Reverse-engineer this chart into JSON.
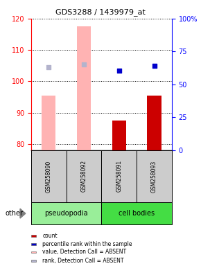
{
  "title": "GDS3288 / 1439979_at",
  "samples": [
    "GSM258090",
    "GSM258092",
    "GSM258091",
    "GSM258093"
  ],
  "groups": [
    "pseudopodia",
    "pseudopodia",
    "cell bodies",
    "cell bodies"
  ],
  "ylim_left": [
    78,
    120
  ],
  "ylim_right": [
    0,
    100
  ],
  "yticks_left": [
    80,
    90,
    100,
    110,
    120
  ],
  "yticks_right": [
    0,
    25,
    50,
    75,
    100
  ],
  "yright_labels": [
    "0",
    "25",
    "50",
    "75",
    "100%"
  ],
  "bar_values": [
    null,
    null,
    87.5,
    95.5
  ],
  "bar_absent_values": [
    95.5,
    117.5,
    null,
    null
  ],
  "dot_values": [
    null,
    null,
    103.5,
    105.0
  ],
  "dot_absent_values": [
    104.5,
    105.5,
    null,
    null
  ],
  "bar_color": "#cc0000",
  "bar_absent_color": "#ffb3b3",
  "dot_color": "#0000cc",
  "dot_absent_color": "#b3b3cc",
  "group_colors": {
    "pseudopodia": "#99ee99",
    "cell bodies": "#44dd44"
  },
  "legend_items": [
    {
      "label": "count",
      "color": "#cc0000"
    },
    {
      "label": "percentile rank within the sample",
      "color": "#0000cc"
    },
    {
      "label": "value, Detection Call = ABSENT",
      "color": "#ffb3b3"
    },
    {
      "label": "rank, Detection Call = ABSENT",
      "color": "#b3b3cc"
    }
  ],
  "bar_width": 0.4,
  "dot_size": 18
}
